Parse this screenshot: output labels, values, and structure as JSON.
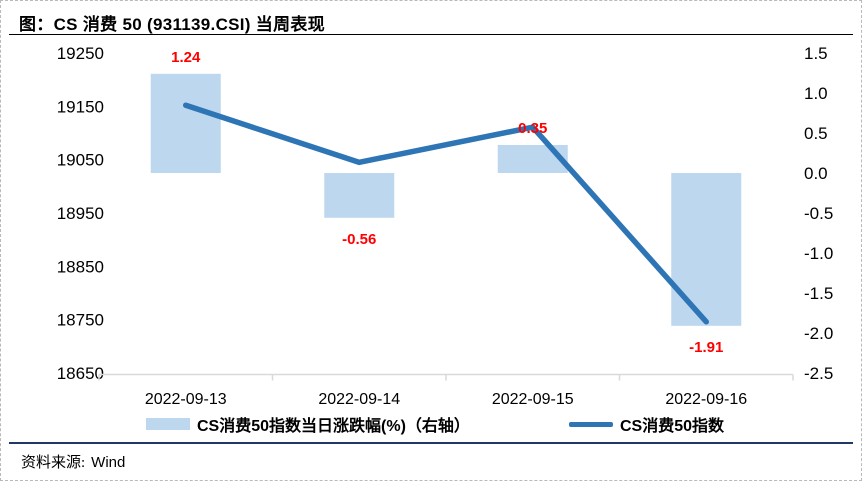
{
  "title": "图：CS 消费 50 (931139.CSI) 当周表现",
  "legend": {
    "items": [
      {
        "label": "CS消费50指数当日涨跌幅(%)（右轴）",
        "swatch": "bar"
      },
      {
        "label": "CS消费50指数",
        "swatch": "line"
      }
    ]
  },
  "footer": {
    "source_label": "资料来源:",
    "source_value": "Wind"
  },
  "colors": {
    "bar_fill": "#BDD7EE",
    "line_stroke": "#2E75B6",
    "data_label": "#FF0000",
    "axis_line": "#D9D9D9",
    "axis_text": "#000000",
    "title_rule": "#000000",
    "footer_rule": "#1F3864",
    "frame_dash": "#B9B9B9"
  },
  "chart_data": {
    "type": "bar",
    "subtype": "combo-bar-line-dual-axis",
    "title": "图：CS 消费 50 (931139.CSI) 当周表现",
    "categories": [
      "2022-09-13",
      "2022-09-14",
      "2022-09-15",
      "2022-09-16"
    ],
    "series": [
      {
        "name": "CS消费50指数当日涨跌幅(%)（右轴）",
        "type": "bar",
        "axis": "right",
        "values": [
          1.24,
          -0.56,
          0.35,
          -1.91
        ],
        "labels": [
          "1.24",
          "-0.56",
          "0.35",
          "-1.91"
        ]
      },
      {
        "name": "CS消费50指数",
        "type": "line",
        "axis": "left",
        "values": [
          19152,
          19045,
          19111,
          18746
        ]
      }
    ],
    "left_axis": {
      "min": 18650,
      "max": 19250,
      "step": 100,
      "ticks": [
        "19250",
        "19150",
        "19050",
        "18950",
        "18850",
        "18750",
        "18650"
      ]
    },
    "right_axis": {
      "min": -2.5,
      "max": 1.5,
      "step": 0.5,
      "ticks": [
        "1.5",
        "1.0",
        "0.5",
        "0.0",
        "-0.5",
        "-1.0",
        "-1.5",
        "-2.0",
        "-2.5"
      ]
    },
    "grid": false,
    "legend_position": "bottom",
    "source": "Wind"
  }
}
